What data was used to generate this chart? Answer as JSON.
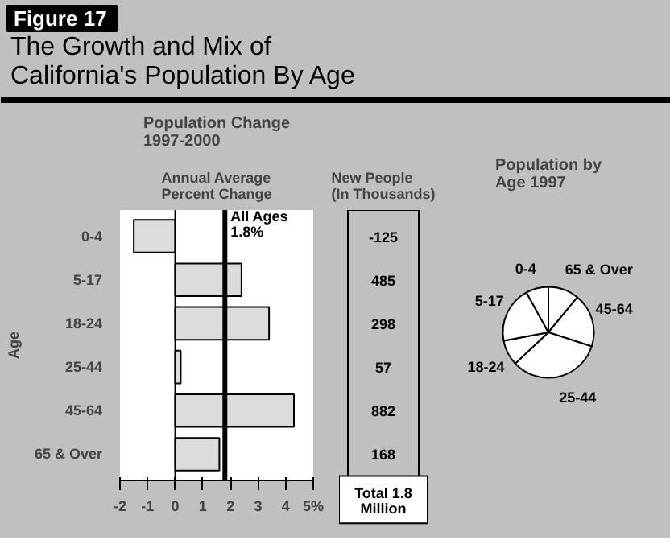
{
  "chart_data": [
    {
      "type": "bar",
      "orientation": "horizontal",
      "title": "Population Change 1997-2000",
      "subtitle": "Annual Average Percent Change",
      "ylabel": "Age",
      "annotations": [
        "Figure 17",
        "The Growth and Mix of California's Population By Age"
      ],
      "categories": [
        "0-4",
        "5-17",
        "18-24",
        "25-44",
        "45-64",
        "65 & Over"
      ],
      "values": [
        -1.5,
        2.4,
        3.4,
        0.2,
        4.3,
        1.6
      ],
      "color": "#dcdcdc",
      "xlim": [
        -2,
        5
      ],
      "xticks": [
        -2,
        -1,
        0,
        1,
        2,
        3,
        4,
        {
          "value": 5,
          "label": "5%"
        }
      ],
      "ref_lines": [
        {
          "axis": "x",
          "value": 1.8,
          "label": "All Ages 1.8%"
        }
      ]
    },
    {
      "type": "other",
      "title": "New People (In Thousands)",
      "categories": [
        null,
        null,
        null,
        null,
        null,
        null
      ],
      "values": [
        -125,
        485,
        298,
        57,
        882,
        168
      ],
      "data_labels": true,
      "annotations": [
        "Total 1.8 Million"
      ]
    },
    {
      "type": "pie",
      "title": "Population by Age 1997",
      "categories": [
        "65 & Over",
        "45-64",
        "25-44",
        "18-24",
        "5-17",
        "0-4"
      ],
      "values": [
        11,
        19,
        33,
        9,
        20,
        8
      ],
      "colors": [
        "#ffffff",
        "#ffffff",
        "#ffffff",
        "#ffffff",
        "#ffffff",
        "#ffffff"
      ]
    }
  ]
}
